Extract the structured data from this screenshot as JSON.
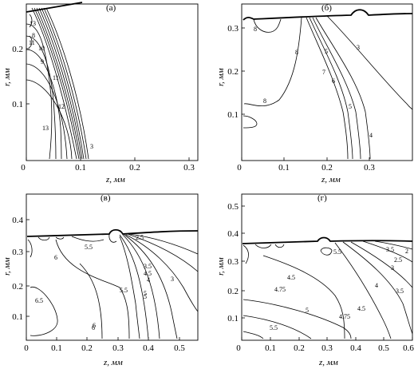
{
  "chart_data": [
    {
      "type": "contour",
      "panel_label": "(а)",
      "xlabel": "z, мм",
      "ylabel": "r, мм",
      "xticks": [
        "0",
        "0.1",
        "0.2",
        "0.3"
      ],
      "yticks": [
        "0.1",
        "0.2"
      ],
      "contour_labels": [
        "13",
        "11",
        "10",
        "9",
        "8",
        "11",
        "12",
        "13",
        "3"
      ]
    },
    {
      "type": "contour",
      "panel_label": "(б)",
      "xlabel": "z, мм",
      "ylabel": "r, мм",
      "xticks": [
        "0",
        "0.1",
        "0.2",
        "0.3"
      ],
      "yticks": [
        "0.1",
        "0.2",
        "0.3"
      ],
      "contour_labels": [
        "8",
        "8",
        "8",
        "7",
        "6",
        "5",
        "5",
        "4",
        "3"
      ]
    },
    {
      "type": "contour",
      "panel_label": "(в)",
      "xlabel": "z, мм",
      "ylabel": "r, мм",
      "xticks": [
        "0",
        "0.1",
        "0.2",
        "0.3",
        "0.4",
        "0.5"
      ],
      "yticks": [
        "0.1",
        "0.2",
        "0.3",
        "0.4"
      ],
      "contour_labels": [
        "6",
        "5.5",
        "6.5",
        "6",
        "2.5",
        "3.5",
        "4",
        "4.5",
        "5",
        "3",
        "5.5",
        "6",
        "5"
      ]
    },
    {
      "type": "contour",
      "panel_label": "(г)",
      "xlabel": "z, мм",
      "ylabel": "r, мм",
      "xticks": [
        "0",
        "0.1",
        "0.2",
        "0.3",
        "0.4",
        "0.5",
        "0.6"
      ],
      "yticks": [
        "0.1",
        "0.2",
        "0.3",
        "0.4",
        "0.5"
      ],
      "contour_labels": [
        "5.5",
        "3.5",
        "2",
        "2.5",
        "3",
        "4.5",
        "4.75",
        "4",
        "3.5",
        "4.5",
        "4.75",
        "5",
        "5.5"
      ]
    }
  ]
}
